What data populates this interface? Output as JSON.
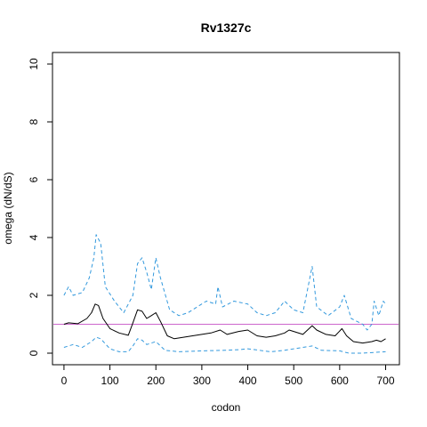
{
  "chart_data": {
    "type": "line",
    "title": "Rv1327c",
    "xlabel": "codon",
    "ylabel": "omega (dN/dS)",
    "xlim": [
      -25,
      730
    ],
    "ylim": [
      -0.4,
      10.4
    ],
    "x_ticks": [
      0,
      100,
      200,
      300,
      400,
      500,
      600,
      700
    ],
    "y_ticks": [
      0,
      2,
      4,
      6,
      8,
      10
    ],
    "grid": false,
    "reference_line": {
      "y": 1,
      "color": "#cc66cc"
    },
    "series": [
      {
        "style": "solid",
        "color": "#000000",
        "points": [
          [
            0,
            1.0
          ],
          [
            10,
            1.05
          ],
          [
            30,
            1.02
          ],
          [
            50,
            1.2
          ],
          [
            60,
            1.4
          ],
          [
            68,
            1.7
          ],
          [
            75,
            1.65
          ],
          [
            85,
            1.2
          ],
          [
            100,
            0.85
          ],
          [
            120,
            0.7
          ],
          [
            140,
            0.62
          ],
          [
            150,
            1.05
          ],
          [
            160,
            1.5
          ],
          [
            170,
            1.45
          ],
          [
            180,
            1.2
          ],
          [
            190,
            1.3
          ],
          [
            200,
            1.4
          ],
          [
            210,
            1.1
          ],
          [
            225,
            0.6
          ],
          [
            240,
            0.5
          ],
          [
            260,
            0.55
          ],
          [
            280,
            0.6
          ],
          [
            300,
            0.65
          ],
          [
            320,
            0.7
          ],
          [
            340,
            0.8
          ],
          [
            355,
            0.65
          ],
          [
            380,
            0.75
          ],
          [
            400,
            0.8
          ],
          [
            420,
            0.6
          ],
          [
            440,
            0.55
          ],
          [
            460,
            0.6
          ],
          [
            480,
            0.7
          ],
          [
            490,
            0.8
          ],
          [
            500,
            0.75
          ],
          [
            520,
            0.65
          ],
          [
            540,
            0.95
          ],
          [
            550,
            0.8
          ],
          [
            570,
            0.65
          ],
          [
            590,
            0.6
          ],
          [
            605,
            0.85
          ],
          [
            615,
            0.6
          ],
          [
            630,
            0.4
          ],
          [
            650,
            0.35
          ],
          [
            670,
            0.4
          ],
          [
            680,
            0.45
          ],
          [
            690,
            0.4
          ],
          [
            700,
            0.5
          ]
        ]
      },
      {
        "style": "dashed",
        "color": "#3399dd",
        "points": [
          [
            0,
            2.0
          ],
          [
            10,
            2.3
          ],
          [
            20,
            2.0
          ],
          [
            40,
            2.1
          ],
          [
            55,
            2.6
          ],
          [
            65,
            3.3
          ],
          [
            70,
            4.1
          ],
          [
            80,
            3.8
          ],
          [
            90,
            2.3
          ],
          [
            110,
            1.8
          ],
          [
            130,
            1.4
          ],
          [
            150,
            2.0
          ],
          [
            160,
            3.1
          ],
          [
            170,
            3.3
          ],
          [
            180,
            2.8
          ],
          [
            190,
            2.2
          ],
          [
            200,
            3.3
          ],
          [
            210,
            2.6
          ],
          [
            230,
            1.5
          ],
          [
            250,
            1.3
          ],
          [
            270,
            1.4
          ],
          [
            290,
            1.6
          ],
          [
            310,
            1.8
          ],
          [
            330,
            1.7
          ],
          [
            335,
            2.3
          ],
          [
            345,
            1.6
          ],
          [
            370,
            1.8
          ],
          [
            400,
            1.7
          ],
          [
            420,
            1.4
          ],
          [
            440,
            1.3
          ],
          [
            460,
            1.4
          ],
          [
            480,
            1.8
          ],
          [
            500,
            1.5
          ],
          [
            520,
            1.4
          ],
          [
            540,
            3.0
          ],
          [
            550,
            1.6
          ],
          [
            575,
            1.3
          ],
          [
            600,
            1.6
          ],
          [
            610,
            2.0
          ],
          [
            625,
            1.2
          ],
          [
            650,
            1.0
          ],
          [
            660,
            0.8
          ],
          [
            670,
            1.0
          ],
          [
            675,
            1.8
          ],
          [
            685,
            1.3
          ],
          [
            695,
            1.8
          ],
          [
            700,
            1.7
          ]
        ]
      },
      {
        "style": "dashed",
        "color": "#3399dd",
        "points": [
          [
            0,
            0.2
          ],
          [
            20,
            0.3
          ],
          [
            40,
            0.2
          ],
          [
            60,
            0.4
          ],
          [
            70,
            0.55
          ],
          [
            80,
            0.5
          ],
          [
            100,
            0.15
          ],
          [
            120,
            0.05
          ],
          [
            140,
            0.05
          ],
          [
            150,
            0.25
          ],
          [
            160,
            0.5
          ],
          [
            170,
            0.45
          ],
          [
            180,
            0.3
          ],
          [
            200,
            0.4
          ],
          [
            220,
            0.1
          ],
          [
            250,
            0.05
          ],
          [
            300,
            0.08
          ],
          [
            350,
            0.1
          ],
          [
            380,
            0.12
          ],
          [
            400,
            0.15
          ],
          [
            450,
            0.05
          ],
          [
            480,
            0.1
          ],
          [
            500,
            0.15
          ],
          [
            540,
            0.25
          ],
          [
            560,
            0.1
          ],
          [
            600,
            0.08
          ],
          [
            620,
            0.0
          ],
          [
            650,
            0.0
          ],
          [
            700,
            0.05
          ]
        ]
      }
    ]
  }
}
